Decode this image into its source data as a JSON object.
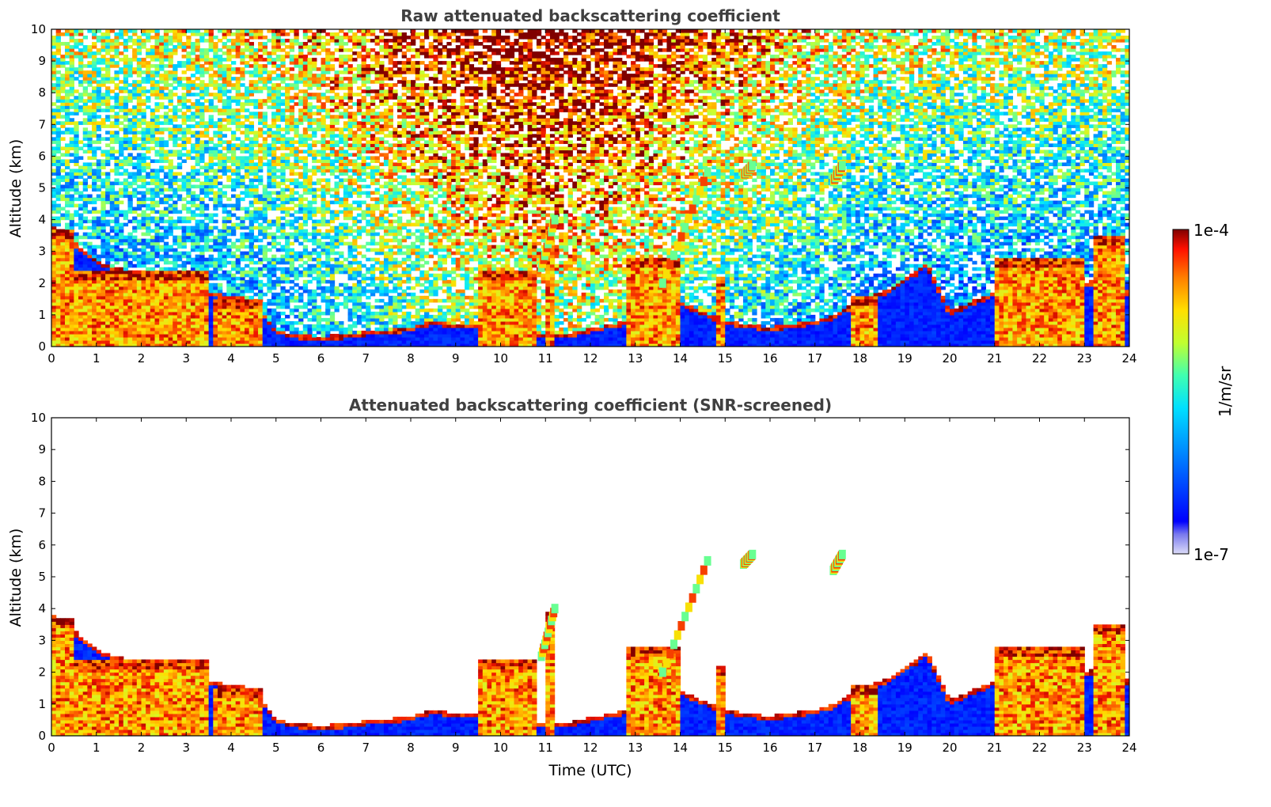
{
  "chart_data": [
    {
      "type": "heatmap",
      "title": "Raw attenuated backscattering coefficient",
      "xlabel": "",
      "ylabel": "Altitude (km)",
      "xlim": [
        0,
        24
      ],
      "ylim": [
        0,
        10
      ],
      "x_ticks": [
        "0",
        "1",
        "2",
        "3",
        "4",
        "5",
        "6",
        "7",
        "8",
        "9",
        "10",
        "11",
        "12",
        "13",
        "14",
        "15",
        "16",
        "17",
        "18",
        "19",
        "20",
        "21",
        "22",
        "23",
        "24"
      ],
      "y_ticks": [
        "0",
        "1",
        "2",
        "3",
        "4",
        "5",
        "6",
        "7",
        "8",
        "9",
        "10"
      ],
      "screened": false,
      "grid": false
    },
    {
      "type": "heatmap",
      "title": "Attenuated backscattering coefficient (SNR-screened)",
      "xlabel": "Time (UTC)",
      "ylabel": "Altitude (km)",
      "xlim": [
        0,
        24
      ],
      "ylim": [
        0,
        10
      ],
      "x_ticks": [
        "0",
        "1",
        "2",
        "3",
        "4",
        "5",
        "6",
        "7",
        "8",
        "9",
        "10",
        "11",
        "12",
        "13",
        "14",
        "15",
        "16",
        "17",
        "18",
        "19",
        "20",
        "21",
        "22",
        "23",
        "24"
      ],
      "y_ticks": [
        "0",
        "1",
        "2",
        "3",
        "4",
        "5",
        "6",
        "7",
        "8",
        "9",
        "10"
      ],
      "screened": true,
      "grid": false
    }
  ],
  "colorbar": {
    "max_label": "1e-4",
    "min_label": "1e-7",
    "unit": "1/m/sr",
    "scale": "log",
    "colormap": "jet"
  },
  "features": {
    "boundary_layer_top": [
      [
        0,
        3.7
      ],
      [
        0.5,
        3.2
      ],
      [
        1,
        2.6
      ],
      [
        1.5,
        2.35
      ],
      [
        2,
        2.2
      ],
      [
        2.5,
        1.95
      ],
      [
        3,
        1.8
      ],
      [
        3.5,
        1.6
      ],
      [
        4,
        1.5
      ],
      [
        4.5,
        1.4
      ],
      [
        5,
        0.4
      ],
      [
        5.5,
        0.25
      ],
      [
        6,
        0.22
      ],
      [
        6.5,
        0.25
      ],
      [
        7,
        0.35
      ],
      [
        7.5,
        0.4
      ],
      [
        8,
        0.5
      ],
      [
        8.5,
        0.7
      ],
      [
        9,
        0.6
      ],
      [
        10,
        0.5
      ],
      [
        11,
        0.3
      ],
      [
        11.5,
        0.3
      ],
      [
        12,
        0.45
      ],
      [
        12.5,
        0.6
      ],
      [
        13,
        0.75
      ],
      [
        13.5,
        1.0
      ],
      [
        14,
        1.3
      ],
      [
        15,
        0.7
      ],
      [
        16,
        0.5
      ],
      [
        17,
        0.7
      ],
      [
        17.5,
        0.9
      ],
      [
        18,
        1.4
      ],
      [
        18.5,
        1.6
      ],
      [
        19,
        2.0
      ],
      [
        19.5,
        2.5
      ],
      [
        20,
        1.0
      ],
      [
        20.5,
        1.3
      ],
      [
        21,
        1.6
      ],
      [
        21.5,
        1.9
      ],
      [
        22,
        2.0
      ],
      [
        22.5,
        2.0
      ],
      [
        23,
        1.9
      ],
      [
        23.5,
        2.0
      ],
      [
        24,
        1.6
      ]
    ],
    "cloud_columns": [
      [
        0,
        0.5,
        3.7
      ],
      [
        0.5,
        3.5,
        2.4
      ],
      [
        3.6,
        4.7,
        1.5
      ],
      [
        9.5,
        10.8,
        2.4
      ],
      [
        11.05,
        11.15,
        3.9
      ],
      [
        12.8,
        14.0,
        2.8
      ],
      [
        14.8,
        15.0,
        2.2
      ],
      [
        17.8,
        18.4,
        1.6
      ],
      [
        21.0,
        23.0,
        2.8
      ],
      [
        23.2,
        23.9,
        3.5
      ]
    ],
    "plumes": [
      [
        13.6,
        2.0,
        14.6,
        5.5
      ],
      [
        10.9,
        2.5,
        11.2,
        4.0
      ],
      [
        17.4,
        5.2,
        17.6,
        5.7
      ],
      [
        15.4,
        5.4,
        15.6,
        5.7
      ]
    ]
  }
}
